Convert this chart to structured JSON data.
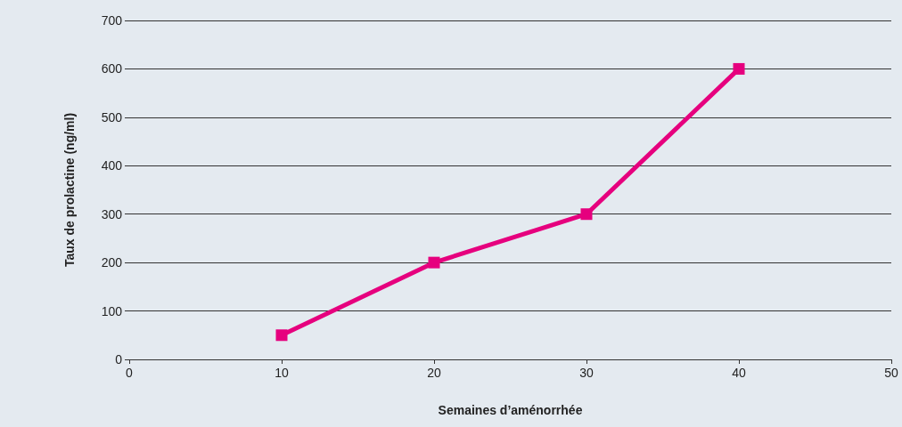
{
  "chart_data": {
    "type": "line",
    "xlabel": "Semaines d’aménorrhée",
    "ylabel": "Taux de prolactine (ng/ml)",
    "x": [
      10,
      20,
      30,
      40
    ],
    "series": [
      {
        "color": "#e6007e",
        "values": [
          50,
          200,
          300,
          600
        ]
      }
    ],
    "xlim": [
      0,
      50
    ],
    "xticks": [
      0,
      10,
      20,
      30,
      40,
      50
    ],
    "ylim": [
      0,
      700
    ],
    "yticks": [
      0,
      100,
      200,
      300,
      400,
      500,
      600,
      700
    ],
    "grid": "y",
    "marker": "square",
    "line_style": "solid"
  }
}
